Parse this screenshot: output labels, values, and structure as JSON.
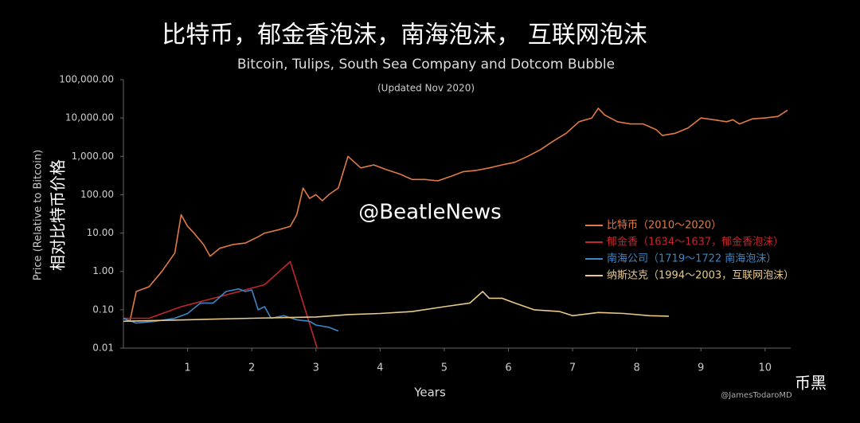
{
  "chart_data": {
    "type": "line",
    "title": "比特币，郁金香泡沫，南海泡沫， 互联网泡沫",
    "subtitle": "Bitcoin, Tulips, South Sea Company and Dotcom Bubble",
    "note": "(Updated Nov 2020)",
    "x_label": "Years",
    "y_label": "Price (Relative to Bitcoin)",
    "y_label_cn": "相对比特币价格",
    "watermark": "@BeatleNews",
    "brand": "币黑",
    "credit": "@JamesTodaroMD",
    "yscale": "log",
    "grid": false,
    "legend": "right",
    "xlim": [
      0,
      10.4
    ],
    "xticks": [
      1,
      2,
      3,
      4,
      5,
      6,
      7,
      8,
      9,
      10
    ],
    "ylim": [
      0.01,
      100000
    ],
    "yticks": [
      0.01,
      {
        "value": 0.1,
        "label": "0.10"
      },
      {
        "value": 1,
        "label": "1.00"
      },
      {
        "value": 10,
        "label": "10.00"
      },
      {
        "value": 100,
        "label": "100.00"
      },
      {
        "value": 1000,
        "label": "1,000.00"
      },
      {
        "value": 10000,
        "label": "10,000.00"
      },
      {
        "value": 100000,
        "label": "100,000.00"
      }
    ],
    "series": [
      {
        "name": "比特币（2010～2020）",
        "color": "#e07b45",
        "x": [
          0,
          0.1,
          0.2,
          0.4,
          0.6,
          0.8,
          0.9,
          1.0,
          1.1,
          1.25,
          1.35,
          1.5,
          1.7,
          1.9,
          2.1,
          2.2,
          2.4,
          2.6,
          2.7,
          2.8,
          2.9,
          3.0,
          3.1,
          3.2,
          3.35,
          3.5,
          3.7,
          3.9,
          4.1,
          4.3,
          4.5,
          4.7,
          4.9,
          5.1,
          5.3,
          5.5,
          5.7,
          5.9,
          6.1,
          6.3,
          6.5,
          6.7,
          6.9,
          7.1,
          7.3,
          7.4,
          7.5,
          7.7,
          7.9,
          8.1,
          8.3,
          8.4,
          8.6,
          8.8,
          9.0,
          9.2,
          9.4,
          9.5,
          9.6,
          9.8,
          10.0,
          10.2,
          10.35
        ],
        "values": [
          0.06,
          0.05,
          0.3,
          0.4,
          1.0,
          3,
          30,
          15,
          10,
          5,
          2.5,
          4,
          5,
          5.5,
          8,
          10,
          12,
          15,
          30,
          150,
          80,
          100,
          70,
          100,
          150,
          1000,
          500,
          600,
          450,
          350,
          250,
          250,
          230,
          300,
          400,
          430,
          500,
          600,
          700,
          1000,
          1500,
          2500,
          4000,
          8000,
          10000,
          18000,
          12000,
          8000,
          7000,
          7000,
          5000,
          3500,
          4000,
          5500,
          10000,
          9000,
          8000,
          9000,
          7000,
          9500,
          10000,
          11000,
          16000
        ]
      },
      {
        "name": "郁金香（1634～1637，郁金香泡沫）",
        "color": "#c0272d",
        "x": [
          0,
          0.4,
          0.9,
          1.5,
          2.2,
          2.6,
          3.02
        ],
        "values": [
          0.06,
          0.06,
          0.12,
          0.22,
          0.45,
          1.8,
          0.01
        ]
      },
      {
        "name": "南海公司（1719～1722 南海泡沫）",
        "color": "#3a86c8",
        "x": [
          0,
          0.2,
          0.5,
          0.8,
          1.0,
          1.2,
          1.4,
          1.6,
          1.8,
          1.9,
          2.0,
          2.1,
          2.2,
          2.3,
          2.5,
          2.7,
          2.9,
          3.0,
          3.2,
          3.35
        ],
        "values": [
          0.06,
          0.045,
          0.05,
          0.06,
          0.08,
          0.15,
          0.15,
          0.3,
          0.35,
          0.3,
          0.33,
          0.1,
          0.12,
          0.06,
          0.07,
          0.055,
          0.05,
          0.04,
          0.035,
          0.028
        ]
      },
      {
        "name": "纳斯达克（1994～2003，互联网泡沫）",
        "color": "#e8c98a",
        "x": [
          0,
          1,
          2,
          3,
          3.5,
          4,
          4.5,
          5,
          5.4,
          5.6,
          5.7,
          5.9,
          6.1,
          6.4,
          6.8,
          7.0,
          7.4,
          7.8,
          8.2,
          8.5
        ],
        "values": [
          0.05,
          0.055,
          0.06,
          0.065,
          0.075,
          0.08,
          0.09,
          0.12,
          0.15,
          0.3,
          0.2,
          0.2,
          0.15,
          0.1,
          0.09,
          0.07,
          0.085,
          0.08,
          0.07,
          0.068
        ]
      }
    ]
  }
}
